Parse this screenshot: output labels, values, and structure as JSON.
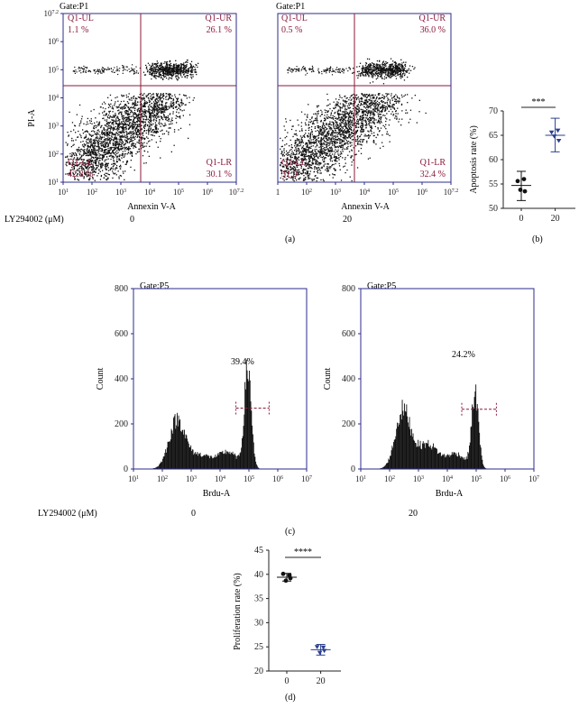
{
  "colors": {
    "axis": "#2b2b8c",
    "gate": "#8b1a3a",
    "dot": "#111111",
    "bar": "#111111",
    "text": "#222222",
    "group_a": "#111111",
    "group_b": "#2a3f8f"
  },
  "panels": {
    "a": "(a)",
    "b": "(b)",
    "c": "(c)",
    "d": "(d)"
  },
  "treatment_label": "LY294002 (μM)",
  "chart_data": [
    {
      "id": "flow-0",
      "type": "scatter",
      "gate": "Gate:P1",
      "xlabel": "Annexin V-A",
      "ylabel": "PI-A",
      "dose": "0",
      "x_ticks": [
        {
          "base": "10",
          "exp": "1"
        },
        {
          "base": "10",
          "exp": "2"
        },
        {
          "base": "10",
          "exp": "3"
        },
        {
          "base": "10",
          "exp": "4"
        },
        {
          "base": "10",
          "exp": "5"
        },
        {
          "base": "10",
          "exp": "6"
        },
        {
          "base": "10",
          "exp": "7.2"
        }
      ],
      "y_ticks": [
        {
          "base": "10",
          "exp": "1"
        },
        {
          "base": "10",
          "exp": "2"
        },
        {
          "base": "10",
          "exp": "3"
        },
        {
          "base": "10",
          "exp": "4"
        },
        {
          "base": "10",
          "exp": "5"
        },
        {
          "base": "10",
          "exp": "6"
        },
        {
          "base": "10",
          "exp": "7.2"
        }
      ],
      "quadrants": {
        "ul": {
          "name": "Q1-UL",
          "value": "1.1 %"
        },
        "ur": {
          "name": "Q1-UR",
          "value": "26.1 %"
        },
        "ll": {
          "name": "Q1-LL",
          "value": "42.8 %"
        },
        "lr": {
          "name": "Q1-LR",
          "value": "30.1 %"
        }
      }
    },
    {
      "id": "flow-20",
      "type": "scatter",
      "gate": "Gate:P1",
      "xlabel": "Annexin V-A",
      "dose": "20",
      "x_ticks": [
        {
          "base": "1",
          "exp": ""
        },
        {
          "base": "10",
          "exp": "2"
        },
        {
          "base": "10",
          "exp": "3"
        },
        {
          "base": "10",
          "exp": "4"
        },
        {
          "base": "10",
          "exp": "5"
        },
        {
          "base": "10",
          "exp": "6"
        },
        {
          "base": "10",
          "exp": "7.2"
        }
      ],
      "quadrants": {
        "ul": {
          "name": "Q1-UL",
          "value": "0.5 %"
        },
        "ur": {
          "name": "Q1-UR",
          "value": "36.0 %"
        },
        "ll": {
          "name": "Q1-LL",
          "value": "31.0"
        },
        "lr": {
          "name": "Q1-LR",
          "value": "32.4 %"
        }
      }
    },
    {
      "id": "apoptosis",
      "type": "scatter",
      "ylabel": "Apoptosis rate (%)",
      "ylim": [
        50,
        70
      ],
      "y_ticks": [
        "50",
        "55",
        "60",
        "65",
        "70"
      ],
      "categories": [
        "0",
        "20"
      ],
      "significance": "***",
      "series": [
        {
          "category": "0",
          "values": [
            55.6,
            56.0,
            53.8,
            53.5
          ],
          "mean": 54.7,
          "sd_low": 51.6,
          "sd_high": 57.6
        },
        {
          "category": "20",
          "values": [
            65.6,
            66.0,
            64.8,
            63.9
          ],
          "mean": 65.0,
          "sd_low": 61.6,
          "sd_high": 68.5
        }
      ]
    },
    {
      "id": "brdu-0",
      "type": "bar",
      "gate": "Gate:P5",
      "xlabel": "Brdu-A",
      "ylabel": "Count",
      "dose": "0",
      "ylim": [
        0,
        800
      ],
      "y_ticks": [
        "0",
        "200",
        "400",
        "600",
        "800"
      ],
      "x_ticks": [
        {
          "base": "10",
          "exp": "1"
        },
        {
          "base": "10",
          "exp": "2"
        },
        {
          "base": "10",
          "exp": "3"
        },
        {
          "base": "10",
          "exp": "4"
        },
        {
          "base": "10",
          "exp": "5"
        },
        {
          "base": "10",
          "exp": "6"
        },
        {
          "base": "10",
          "exp": "7"
        }
      ],
      "percent": "39.4%",
      "gate_range": [
        4.55,
        5.7
      ],
      "gate_level": 270,
      "peaks": [
        {
          "center": 2.5,
          "width": 0.28,
          "height": 215
        },
        {
          "center": 3.3,
          "width": 0.35,
          "height": 60
        },
        {
          "center": 4.25,
          "width": 0.35,
          "height": 75
        },
        {
          "center": 4.95,
          "width": 0.12,
          "height": 440
        }
      ]
    },
    {
      "id": "brdu-20",
      "type": "bar",
      "gate": "Gate:P5",
      "xlabel": "Brdu-A",
      "ylabel": "Count",
      "dose": "20",
      "ylim": [
        0,
        800
      ],
      "y_ticks": [
        "0",
        "200",
        "400",
        "600",
        "800"
      ],
      "x_ticks": [
        {
          "base": "10",
          "exp": "1"
        },
        {
          "base": "10",
          "exp": "2"
        },
        {
          "base": "10",
          "exp": "3"
        },
        {
          "base": "10",
          "exp": "4"
        },
        {
          "base": "10",
          "exp": "5"
        },
        {
          "base": "10",
          "exp": "6"
        },
        {
          "base": "10",
          "exp": "7"
        }
      ],
      "percent": "24.2%",
      "gate_range": [
        4.5,
        5.7
      ],
      "gate_level": 265,
      "peaks": [
        {
          "center": 2.45,
          "width": 0.26,
          "height": 255
        },
        {
          "center": 3.3,
          "width": 0.38,
          "height": 110
        },
        {
          "center": 4.3,
          "width": 0.3,
          "height": 65
        },
        {
          "center": 4.95,
          "width": 0.12,
          "height": 330
        }
      ]
    },
    {
      "id": "proliferation",
      "type": "scatter",
      "ylabel": "Proliferation rate (%)",
      "ylim": [
        20,
        45
      ],
      "y_ticks": [
        "20",
        "25",
        "30",
        "35",
        "40",
        "45"
      ],
      "categories": [
        "0",
        "20"
      ],
      "significance": "****",
      "series": [
        {
          "category": "0",
          "values": [
            40.1,
            39.8,
            38.7,
            39.2
          ],
          "mean": 39.4,
          "sd_low": 38.6,
          "sd_high": 40.2
        },
        {
          "category": "20",
          "values": [
            25.0,
            24.9,
            23.8,
            24.2
          ],
          "mean": 24.4,
          "sd_low": 23.3,
          "sd_high": 25.5
        }
      ]
    }
  ]
}
